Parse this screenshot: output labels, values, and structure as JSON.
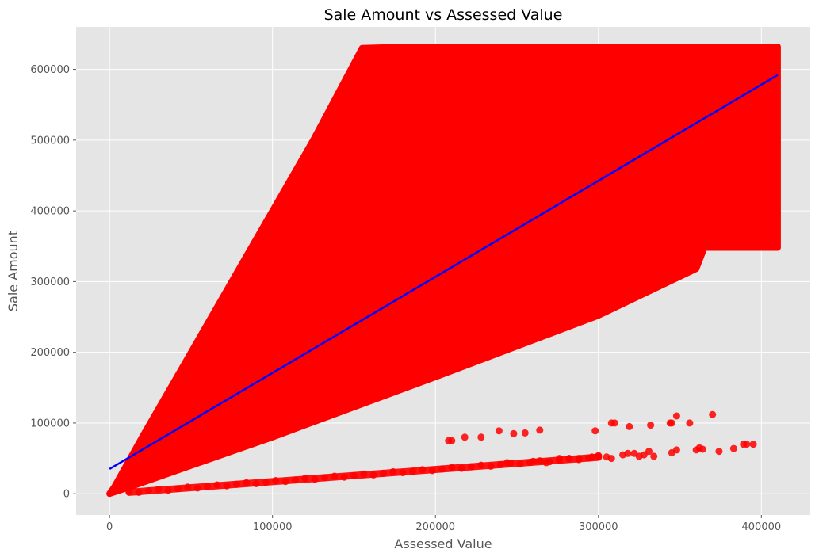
{
  "chart_data": {
    "type": "scatter",
    "title": "Sale Amount vs Assessed Value",
    "xlabel": "Assessed Value",
    "ylabel": "Sale Amount",
    "xlim": [
      -20500,
      430000
    ],
    "ylim": [
      -30000,
      660000
    ],
    "xticks": [
      0,
      100000,
      200000,
      300000,
      400000
    ],
    "yticks": [
      0,
      100000,
      200000,
      300000,
      400000,
      500000,
      600000
    ],
    "xtick_labels": [
      "0",
      "100000",
      "200000",
      "300000",
      "400000"
    ],
    "ytick_labels": [
      "0",
      "100000",
      "200000",
      "300000",
      "400000",
      "500000",
      "600000"
    ],
    "grid": true,
    "style": "ggplot",
    "series": [
      {
        "kind": "dense_cloud",
        "color": "#ff0000",
        "outline": [
          [
            0,
            0
          ],
          [
            13000,
            10000
          ],
          [
            100000,
            80000
          ],
          [
            200000,
            165000
          ],
          [
            300000,
            252000
          ],
          [
            360000,
            318000
          ],
          [
            365000,
            348000
          ],
          [
            410000,
            348000
          ],
          [
            410000,
            632000
          ],
          [
            200000,
            632000
          ],
          [
            185000,
            632000
          ],
          [
            155000,
            630000
          ],
          [
            125000,
            500000
          ],
          [
            90000,
            360000
          ],
          [
            50000,
            200000
          ],
          [
            20000,
            80000
          ],
          [
            3000,
            10000
          ]
        ]
      },
      {
        "kind": "points",
        "color": "#ff0000",
        "points": [
          [
            208000,
            75000
          ],
          [
            210000,
            75000
          ],
          [
            218000,
            80000
          ],
          [
            228000,
            80000
          ],
          [
            239000,
            89000
          ],
          [
            248000,
            85000
          ],
          [
            255000,
            86000
          ],
          [
            264000,
            90000
          ],
          [
            298000,
            89000
          ],
          [
            308000,
            100000
          ],
          [
            310000,
            100000
          ],
          [
            319000,
            95000
          ],
          [
            332000,
            97000
          ],
          [
            344000,
            100000
          ],
          [
            345000,
            100000
          ],
          [
            348000,
            110000
          ],
          [
            356000,
            100000
          ],
          [
            370000,
            112000
          ],
          [
            305000,
            52000
          ],
          [
            308000,
            50000
          ],
          [
            315000,
            55000
          ],
          [
            318000,
            57000
          ],
          [
            322000,
            57000
          ],
          [
            325000,
            53000
          ],
          [
            328000,
            55000
          ],
          [
            331000,
            60000
          ],
          [
            334000,
            53000
          ],
          [
            345000,
            58000
          ],
          [
            348000,
            62000
          ],
          [
            360000,
            62000
          ],
          [
            362000,
            65000
          ],
          [
            364000,
            63000
          ],
          [
            374000,
            60000
          ],
          [
            383000,
            64000
          ],
          [
            389000,
            70000
          ],
          [
            391000,
            70000
          ],
          [
            395000,
            70000
          ],
          [
            244000,
            44000
          ],
          [
            260000,
            46000
          ],
          [
            268000,
            44000
          ],
          [
            276000,
            50000
          ],
          [
            282000,
            50000
          ],
          [
            288000,
            50000
          ],
          [
            296000,
            52000
          ],
          [
            300000,
            54000
          ]
        ]
      },
      {
        "kind": "band",
        "color": "#ff0000",
        "x0": 12000,
        "x1": 300000,
        "slope": 0.172
      },
      {
        "kind": "regression_line",
        "color": "#0000ff",
        "x": [
          0,
          410000
        ],
        "y": [
          35000,
          592000
        ]
      }
    ]
  }
}
